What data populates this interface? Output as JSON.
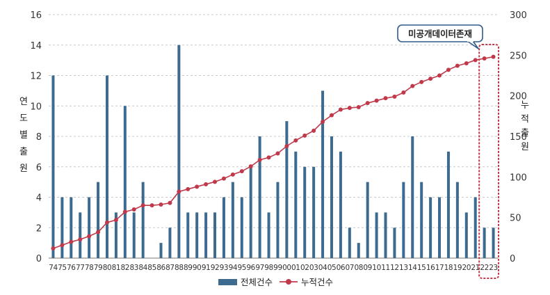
{
  "chart_data": {
    "type": "bar",
    "categories": [
      "74",
      "75",
      "76",
      "77",
      "78",
      "79",
      "80",
      "81",
      "82",
      "83",
      "84",
      "85",
      "86",
      "87",
      "88",
      "89",
      "90",
      "91",
      "92",
      "93",
      "94",
      "95",
      "96",
      "97",
      "98",
      "99",
      "00",
      "01",
      "02",
      "03",
      "04",
      "05",
      "06",
      "07",
      "08",
      "09",
      "10",
      "11",
      "12",
      "13",
      "14",
      "15",
      "16",
      "17",
      "18",
      "19",
      "20",
      "21",
      "22",
      "23"
    ],
    "series": [
      {
        "name": "전체건수",
        "axis": "left",
        "color": "#3d6a8f",
        "values": [
          12,
          4,
          4,
          3,
          4,
          5,
          12,
          3,
          10,
          3,
          5,
          0,
          1,
          2,
          14,
          3,
          3,
          3,
          3,
          4,
          5,
          4,
          6,
          8,
          3,
          5,
          9,
          7,
          6,
          6,
          11,
          8,
          7,
          2,
          1,
          5,
          3,
          3,
          2,
          5,
          8,
          5,
          4,
          4,
          7,
          5,
          3,
          4,
          2,
          2
        ]
      },
      {
        "name": "누적건수",
        "axis": "right",
        "color": "#c0394b",
        "values": [
          12,
          16,
          20,
          23,
          27,
          32,
          44,
          47,
          57,
          60,
          65,
          65,
          66,
          68,
          82,
          85,
          88,
          91,
          94,
          98,
          103,
          107,
          113,
          121,
          124,
          129,
          138,
          145,
          151,
          157,
          168,
          176,
          183,
          185,
          186,
          191,
          194,
          197,
          199,
          204,
          212,
          217,
          221,
          225,
          232,
          237,
          240,
          244,
          246,
          248
        ]
      }
    ],
    "left_axis": {
      "label": "연도별 출원",
      "ticks": [
        "0",
        "2",
        "4",
        "6",
        "8",
        "10",
        "12",
        "14",
        "16"
      ],
      "range": [
        0,
        16
      ]
    },
    "right_axis": {
      "label": "누적 출원",
      "ticks": [
        "0",
        "50",
        "100",
        "150",
        "200",
        "250",
        "300"
      ],
      "range": [
        0,
        300
      ]
    },
    "grid": true,
    "legend_position": "bottom",
    "annotation": {
      "text": "미공개데이터존재",
      "target_categories": [
        "22",
        "23"
      ]
    }
  },
  "legend": {
    "bar_label": "전체건수",
    "line_label": "누적건수"
  }
}
